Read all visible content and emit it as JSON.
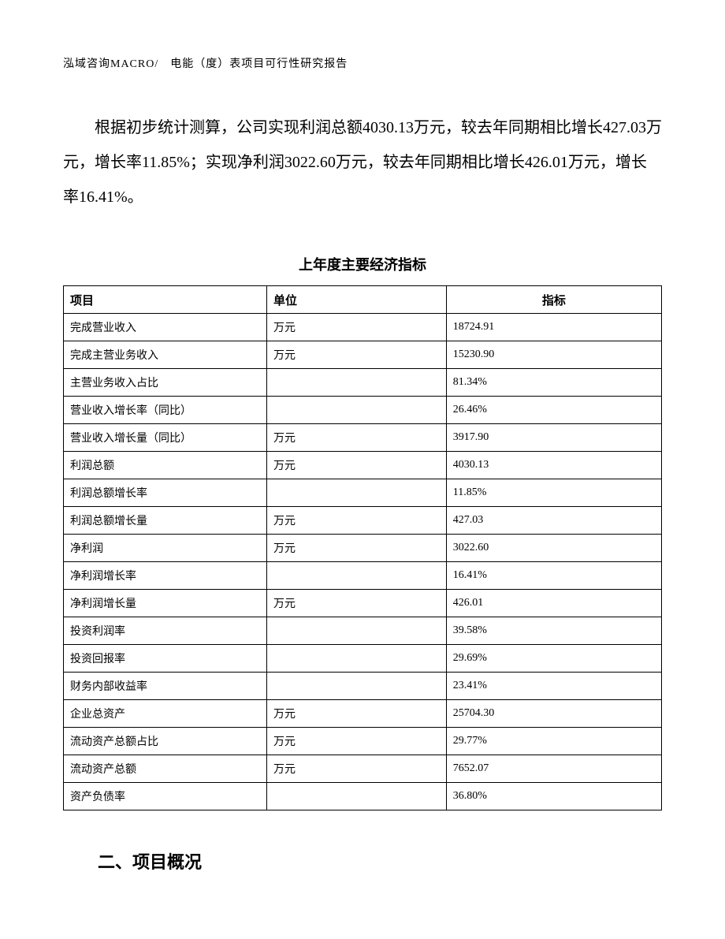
{
  "header": {
    "text": "泓域咨询MACRO/　电能（度）表项目可行性研究报告"
  },
  "paragraph": "根据初步统计测算，公司实现利润总额4030.13万元，较去年同期相比增长427.03万元，增长率11.85%；实现净利润3022.60万元，较去年同期相比增长426.01万元，增长率16.41%。",
  "table": {
    "title": "上年度主要经济指标",
    "columns": [
      "项目",
      "单位",
      "指标"
    ],
    "rows": [
      [
        "完成营业收入",
        "万元",
        "18724.91"
      ],
      [
        "完成主营业务收入",
        "万元",
        "15230.90"
      ],
      [
        "主营业务收入占比",
        "",
        "81.34%"
      ],
      [
        "营业收入增长率（同比）",
        "",
        "26.46%"
      ],
      [
        "营业收入增长量（同比）",
        "万元",
        "3917.90"
      ],
      [
        "利润总额",
        "万元",
        "4030.13"
      ],
      [
        "利润总额增长率",
        "",
        "11.85%"
      ],
      [
        "利润总额增长量",
        "万元",
        "427.03"
      ],
      [
        "净利润",
        "万元",
        "3022.60"
      ],
      [
        "净利润增长率",
        "",
        "16.41%"
      ],
      [
        "净利润增长量",
        "万元",
        "426.01"
      ],
      [
        "投资利润率",
        "",
        "39.58%"
      ],
      [
        "投资回报率",
        "",
        "29.69%"
      ],
      [
        "财务内部收益率",
        "",
        "23.41%"
      ],
      [
        "企业总资产",
        "万元",
        "25704.30"
      ],
      [
        "流动资产总额占比",
        "万元",
        "29.77%"
      ],
      [
        "流动资产总额",
        "万元",
        "7652.07"
      ],
      [
        "资产负债率",
        "",
        "36.80%"
      ]
    ]
  },
  "section_heading": "二、项目概况"
}
